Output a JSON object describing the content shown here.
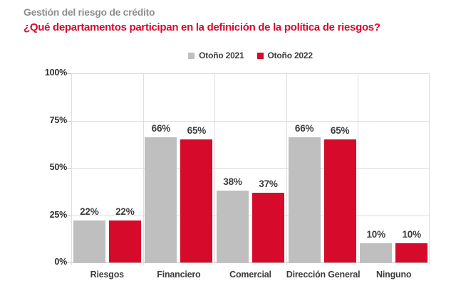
{
  "header": {
    "kicker": "Gestión del riesgo de crédito",
    "title": "¿Qué departamentos participan en la definición de la política de riesgos?"
  },
  "colors": {
    "kicker_gray": "#8E8E8E",
    "accent_red": "#D60A2B",
    "bar_gray": "#BFBFBF",
    "text_dark": "#3D3D3D",
    "gridline": "#DEDEDE"
  },
  "chart_data": {
    "type": "bar",
    "title": "¿Qué departamentos participan en la definición de la política de riesgos?",
    "subtitle": "Gestión del riesgo de crédito",
    "categories": [
      "Riesgos",
      "Financiero",
      "Comercial",
      "Dirección General",
      "Ninguno"
    ],
    "series": [
      {
        "name": "Otoño 2021",
        "color": "#BFBFBF",
        "values": [
          22,
          66,
          38,
          66,
          10
        ]
      },
      {
        "name": "Otoño 2022",
        "color": "#D60A2B",
        "values": [
          22,
          65,
          37,
          65,
          10
        ]
      }
    ],
    "value_suffix": "%",
    "xlabel": "",
    "ylabel": "",
    "ylim": [
      0,
      100
    ],
    "yticks": [
      {
        "value": 100,
        "label": "100%"
      },
      {
        "value": 75,
        "label": "75%"
      },
      {
        "value": 50,
        "label": "50%"
      },
      {
        "value": 25,
        "label": "25%"
      },
      {
        "value": 0,
        "label": "0%"
      }
    ],
    "grid": true,
    "legend_position": "top-center"
  }
}
